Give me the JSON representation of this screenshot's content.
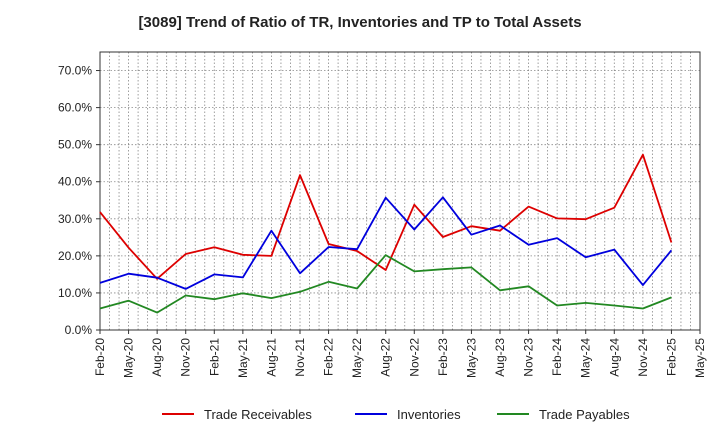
{
  "chart_data": {
    "type": "line",
    "title": "[3089]  Trend of Ratio of TR, Inventories and TP to Total Assets",
    "xlabel": "",
    "ylabel": "",
    "ylim": [
      0,
      0.75
    ],
    "y_ticks": [
      "0.0%",
      "10.0%",
      "20.0%",
      "30.0%",
      "40.0%",
      "50.0%",
      "60.0%",
      "70.0%"
    ],
    "grid": true,
    "legend_position": "bottom",
    "categories": [
      "Feb-20",
      "May-20",
      "Aug-20",
      "Nov-20",
      "Feb-21",
      "May-21",
      "Aug-21",
      "Nov-21",
      "Feb-22",
      "May-22",
      "Aug-22",
      "Nov-22",
      "Feb-23",
      "May-23",
      "Aug-23",
      "Nov-23",
      "Feb-24",
      "May-24",
      "Aug-24",
      "Nov-24",
      "Feb-25",
      "May-25"
    ],
    "series": [
      {
        "name": "Trade Receivables",
        "color": "#dd0000",
        "values": [
          0.318,
          0.222,
          0.138,
          0.205,
          0.223,
          0.203,
          0.2,
          0.418,
          0.232,
          0.213,
          0.162,
          0.338,
          0.251,
          0.28,
          0.268,
          0.333,
          0.301,
          0.299,
          0.33,
          0.473,
          0.236,
          null
        ]
      },
      {
        "name": "Inventories",
        "color": "#0000dd",
        "values": [
          0.127,
          0.152,
          0.141,
          0.111,
          0.15,
          0.142,
          0.268,
          0.153,
          0.224,
          0.218,
          0.357,
          0.271,
          0.358,
          0.257,
          0.282,
          0.23,
          0.248,
          0.196,
          0.217,
          0.121,
          0.215,
          null
        ]
      },
      {
        "name": "Trade Payables",
        "color": "#228822",
        "values": [
          0.058,
          0.079,
          0.047,
          0.093,
          0.083,
          0.099,
          0.086,
          0.103,
          0.13,
          0.112,
          0.202,
          0.158,
          0.164,
          0.169,
          0.107,
          0.118,
          0.066,
          0.073,
          0.066,
          0.058,
          0.088,
          null
        ]
      }
    ]
  }
}
